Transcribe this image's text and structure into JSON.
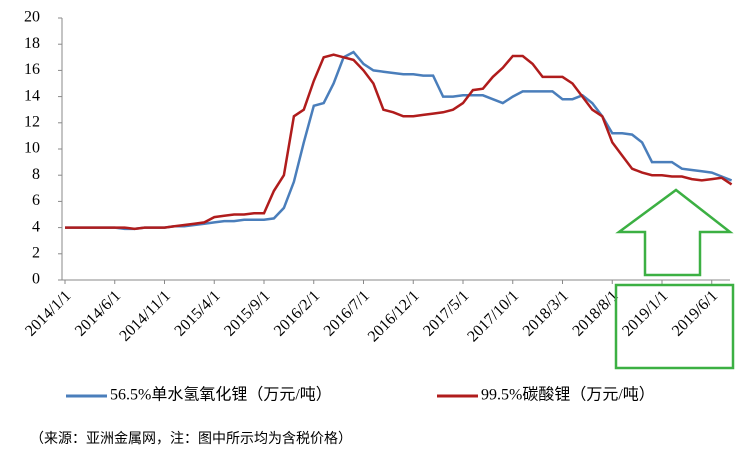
{
  "chart_data": {
    "type": "line",
    "x": [
      "2014/1/1",
      "2014/2/1",
      "2014/3/1",
      "2014/4/1",
      "2014/5/1",
      "2014/6/1",
      "2014/7/1",
      "2014/8/1",
      "2014/9/1",
      "2014/10/1",
      "2014/11/1",
      "2014/12/1",
      "2015/1/1",
      "2015/2/1",
      "2015/3/1",
      "2015/4/1",
      "2015/5/1",
      "2015/6/1",
      "2015/7/1",
      "2015/8/1",
      "2015/9/1",
      "2015/10/1",
      "2015/11/1",
      "2015/12/1",
      "2016/1/1",
      "2016/2/1",
      "2016/3/1",
      "2016/4/1",
      "2016/5/1",
      "2016/6/1",
      "2016/7/1",
      "2016/8/1",
      "2016/9/1",
      "2016/10/1",
      "2016/11/1",
      "2016/12/1",
      "2017/1/1",
      "2017/2/1",
      "2017/3/1",
      "2017/4/1",
      "2017/5/1",
      "2017/6/1",
      "2017/7/1",
      "2017/8/1",
      "2017/9/1",
      "2017/10/1",
      "2017/11/1",
      "2017/12/1",
      "2018/1/1",
      "2018/2/1",
      "2018/3/1",
      "2018/4/1",
      "2018/5/1",
      "2018/6/1",
      "2018/7/1",
      "2018/8/1",
      "2018/9/1",
      "2018/10/1",
      "2018/11/1",
      "2018/12/1",
      "2019/1/1",
      "2019/2/1",
      "2019/3/1",
      "2019/4/1",
      "2019/5/1",
      "2019/6/1",
      "2019/7/1",
      "2019/8/1"
    ],
    "xticks": [
      "2014/1/1",
      "2014/6/1",
      "2014/11/1",
      "2015/4/1",
      "2015/9/1",
      "2016/2/1",
      "2016/7/1",
      "2016/12/1",
      "2017/5/1",
      "2017/10/1",
      "2018/3/1",
      "2018/8/1",
      "2019/1/1",
      "2019/6/1"
    ],
    "series": [
      {
        "name": "56.5%单水氢氧化锂（万元/吨）",
        "color": "#4a7ebb",
        "values": [
          4.0,
          4.0,
          4.0,
          4.0,
          4.0,
          4.0,
          3.9,
          3.9,
          4.0,
          4.0,
          4.0,
          4.1,
          4.1,
          4.2,
          4.3,
          4.4,
          4.5,
          4.5,
          4.6,
          4.6,
          4.6,
          4.7,
          5.5,
          7.5,
          10.5,
          13.3,
          13.5,
          15.0,
          17.0,
          17.4,
          16.5,
          16.0,
          15.9,
          15.8,
          15.7,
          15.7,
          15.6,
          15.6,
          14.0,
          14.0,
          14.1,
          14.1,
          14.1,
          13.8,
          13.5,
          14.0,
          14.4,
          14.4,
          14.4,
          14.4,
          13.8,
          13.8,
          14.1,
          13.5,
          12.5,
          11.2,
          11.2,
          11.1,
          10.5,
          9.0,
          9.0,
          9.0,
          8.5,
          8.4,
          8.3,
          8.2,
          7.9,
          7.6
        ]
      },
      {
        "name": "99.5%碳酸锂（万元/吨）",
        "color": "#b01c1c",
        "values": [
          4.0,
          4.0,
          4.0,
          4.0,
          4.0,
          4.0,
          4.0,
          3.9,
          4.0,
          4.0,
          4.0,
          4.1,
          4.2,
          4.3,
          4.4,
          4.8,
          4.9,
          5.0,
          5.0,
          5.1,
          5.1,
          6.8,
          8.0,
          12.5,
          13.0,
          15.2,
          17.0,
          17.2,
          17.0,
          16.8,
          16.0,
          15.0,
          13.0,
          12.8,
          12.5,
          12.5,
          12.6,
          12.7,
          12.8,
          13.0,
          13.5,
          14.5,
          14.6,
          15.5,
          16.2,
          17.1,
          17.1,
          16.5,
          15.5,
          15.5,
          15.5,
          15.0,
          14.0,
          13.0,
          12.5,
          10.5,
          9.5,
          8.5,
          8.2,
          8.0,
          8.0,
          7.9,
          7.9,
          7.7,
          7.6,
          7.7,
          7.8,
          7.3
        ]
      }
    ],
    "ylim": [
      0,
      20
    ],
    "yticks": [
      0,
      2,
      4,
      6,
      8,
      10,
      12,
      14,
      16,
      18,
      20
    ],
    "source": "（来源：亚洲金属网，注：图中所示均为含税价格）"
  }
}
